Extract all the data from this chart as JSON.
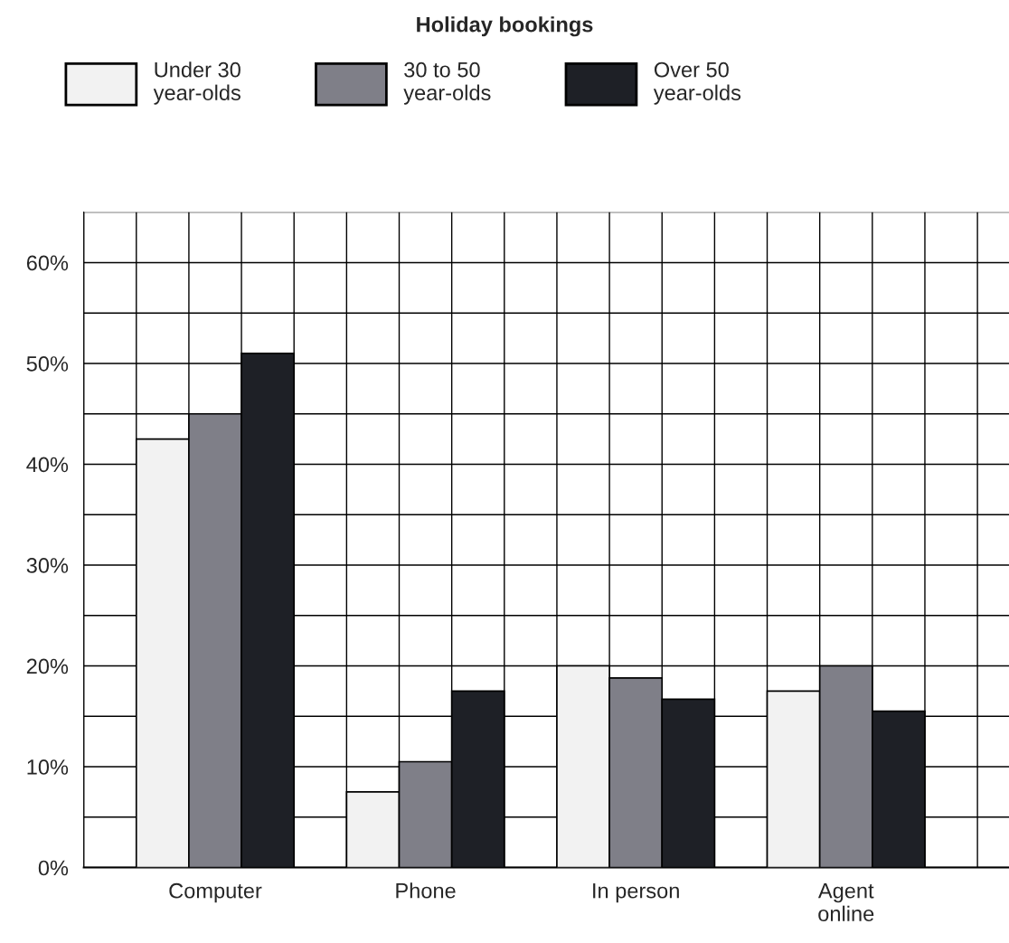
{
  "chart_data": {
    "type": "bar",
    "title": "Holiday bookings",
    "categories": [
      "Computer",
      "Phone",
      "In person",
      "Agent\nonline"
    ],
    "series": [
      {
        "name": "Under 30\nyear-olds",
        "color": "#f2f2f2",
        "values": [
          42.5,
          7.5,
          20,
          17.5
        ]
      },
      {
        "name": "30 to 50\nyear-olds",
        "color": "#7f7f88",
        "values": [
          45,
          10.5,
          18.8,
          20
        ]
      },
      {
        "name": "Over 50\nyear-olds",
        "color": "#1e2026",
        "values": [
          51,
          17.5,
          16.7,
          15.5
        ]
      }
    ],
    "ylim": [
      0,
      65
    ],
    "yticks": [
      {
        "value": 0,
        "label": "0%"
      },
      {
        "value": 5,
        "label": null
      },
      {
        "value": 10,
        "label": "10%"
      },
      {
        "value": 15,
        "label": null
      },
      {
        "value": 20,
        "label": "20%"
      },
      {
        "value": 25,
        "label": null
      },
      {
        "value": 30,
        "label": "30%"
      },
      {
        "value": 35,
        "label": null
      },
      {
        "value": 40,
        "label": "40%"
      },
      {
        "value": 45,
        "label": null
      },
      {
        "value": 50,
        "label": "50%"
      },
      {
        "value": 55,
        "label": null
      },
      {
        "value": 60,
        "label": "60%"
      },
      {
        "value": 65,
        "label": null
      }
    ],
    "grid": true,
    "legend": "top"
  }
}
